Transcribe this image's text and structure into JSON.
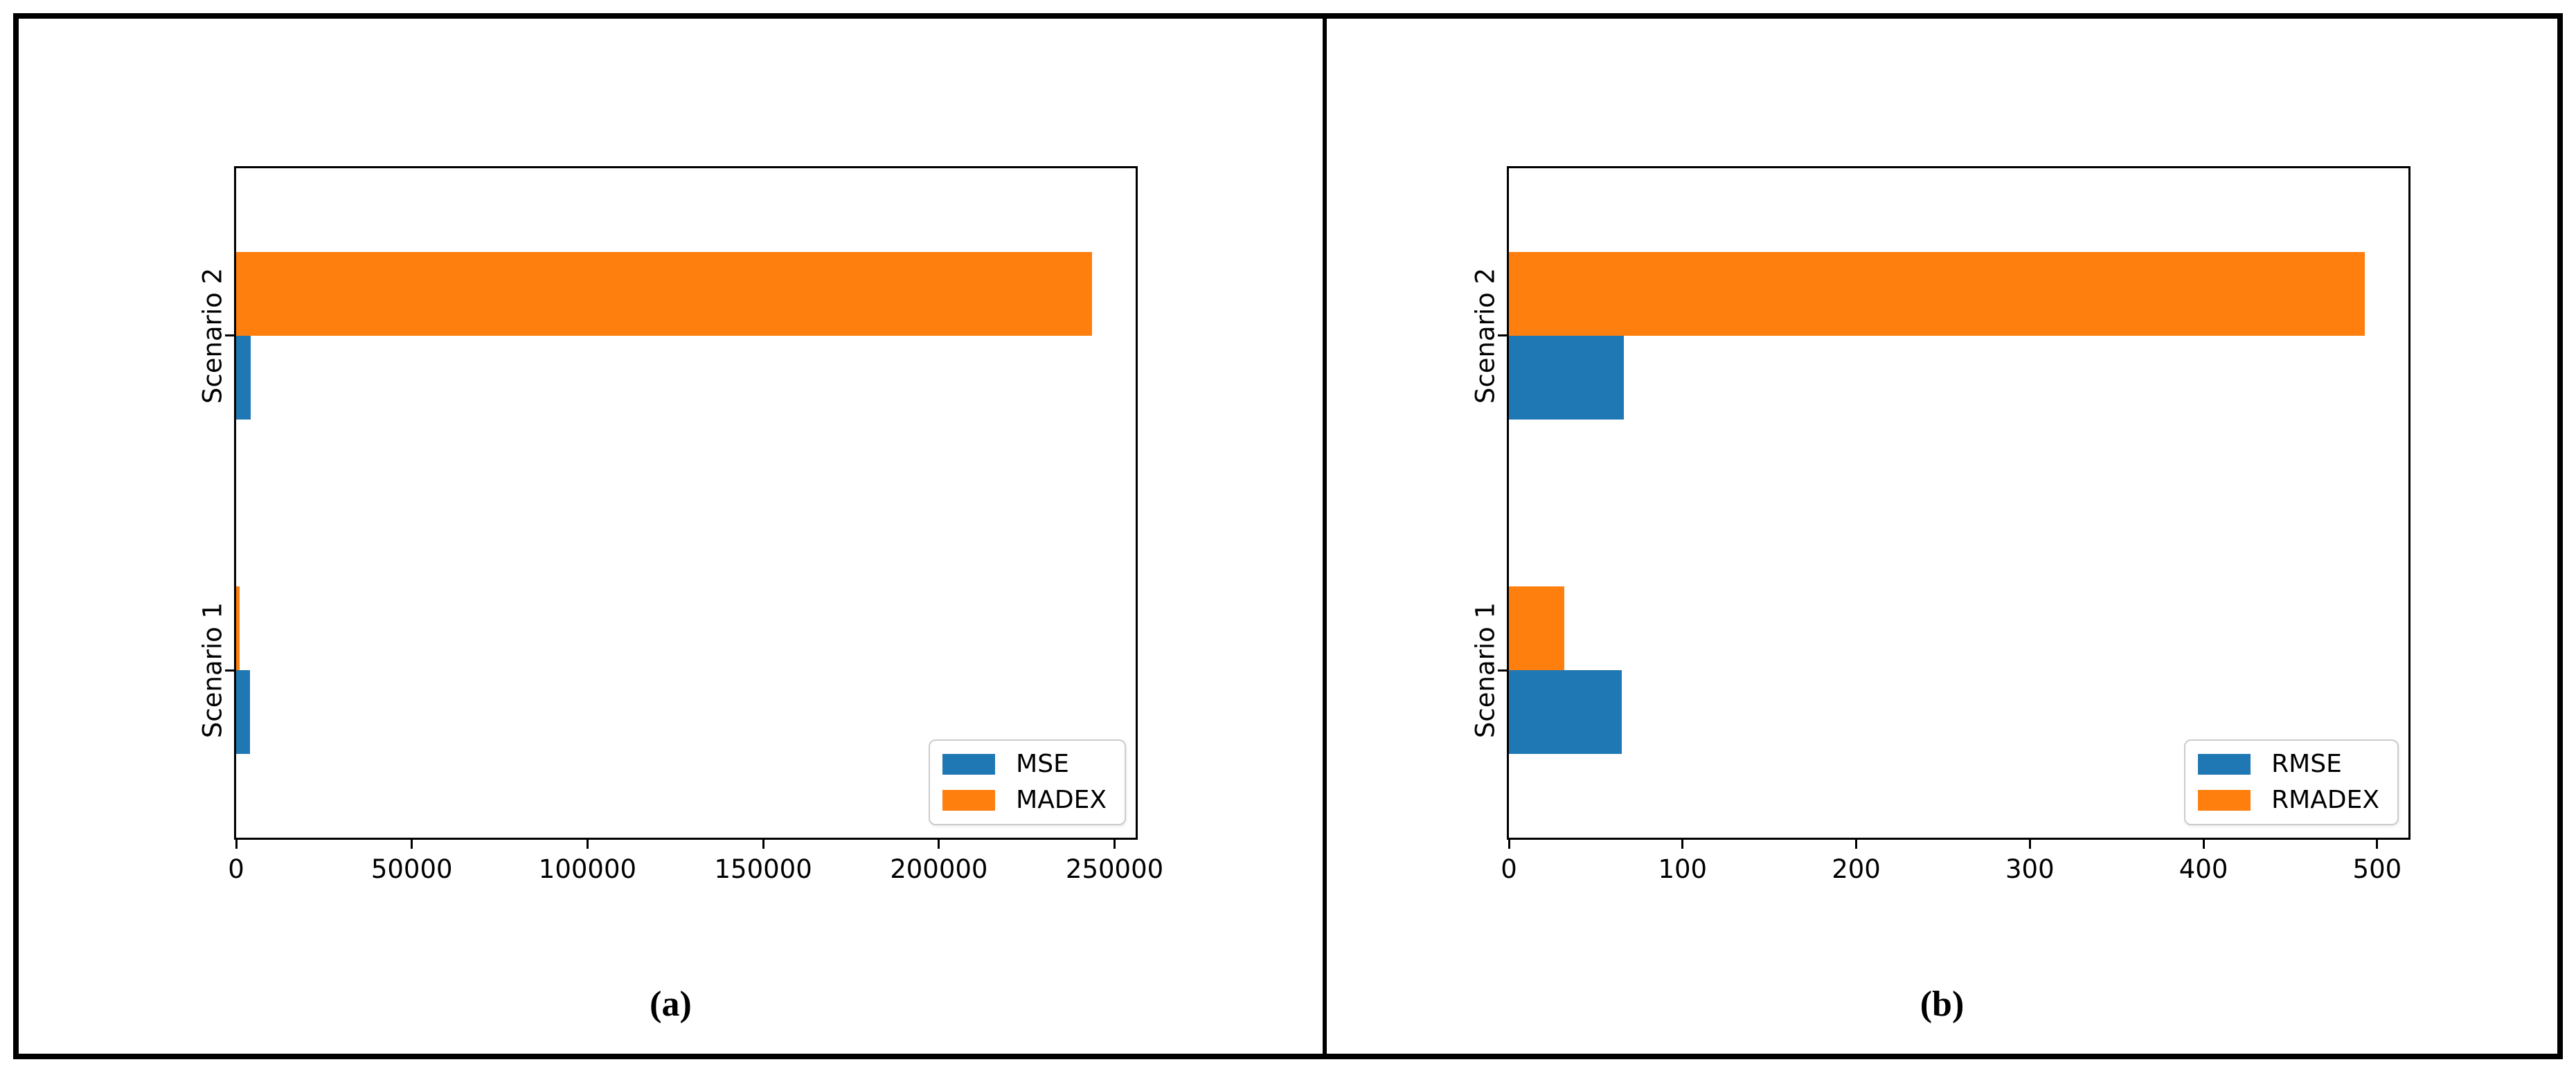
{
  "figure": {
    "panels": [
      {
        "id": "a",
        "caption": "(a)"
      },
      {
        "id": "b",
        "caption": "(b)"
      }
    ]
  },
  "chart_data": [
    {
      "type": "bar",
      "orientation": "horizontal",
      "title": "",
      "xlabel": "",
      "ylabel": "",
      "categories": [
        "Scenario 1",
        "Scenario 2"
      ],
      "series": [
        {
          "name": "MSE",
          "color": "#1f77b4",
          "values": [
            4000,
            4200
          ]
        },
        {
          "name": "MADEX",
          "color": "#ff7f0e",
          "values": [
            950,
            243500
          ]
        }
      ],
      "xticks": [
        0,
        50000,
        100000,
        150000,
        200000,
        250000
      ],
      "xlim": [
        0,
        256000
      ],
      "grid": false,
      "legend": {
        "labels": [
          "MSE",
          "MADEX"
        ],
        "position": "lower right"
      }
    },
    {
      "type": "bar",
      "orientation": "horizontal",
      "title": "",
      "xlabel": "",
      "ylabel": "",
      "categories": [
        "Scenario 1",
        "Scenario 2"
      ],
      "series": [
        {
          "name": "RMSE",
          "color": "#1f77b4",
          "values": [
            65,
            66
          ]
        },
        {
          "name": "RMADEX",
          "color": "#ff7f0e",
          "values": [
            32,
            493
          ]
        }
      ],
      "xticks": [
        0,
        100,
        200,
        300,
        400,
        500
      ],
      "xlim": [
        0,
        518
      ],
      "grid": false,
      "legend": {
        "labels": [
          "RMSE",
          "RMADEX"
        ],
        "position": "lower right"
      }
    }
  ]
}
